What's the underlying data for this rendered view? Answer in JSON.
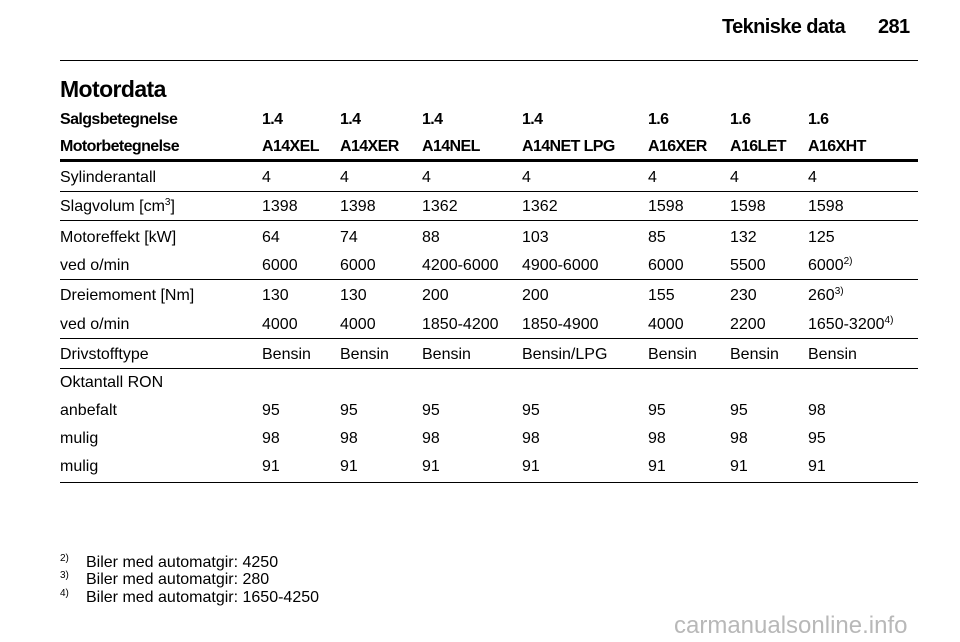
{
  "header": {
    "title": "Tekniske data",
    "page": "281"
  },
  "section": "Motordata",
  "table": {
    "head": [
      [
        "Salgsbetegnelse",
        "1.4",
        "1.4",
        "1.4",
        "1.4",
        "1.6",
        "1.6",
        "1.6"
      ],
      [
        "Motorbetegnelse",
        "A14XEL",
        "A14XER",
        "A14NEL",
        "A14NET LPG",
        "A16XER",
        "A16LET",
        "A16XHT"
      ]
    ],
    "rows": [
      [
        "Sylinderantall",
        "4",
        "4",
        "4",
        "4",
        "4",
        "4",
        "4"
      ],
      [
        {
          "text": "Slagvolum [cm",
          "sup": "3",
          "after": "]"
        },
        "1398",
        "1398",
        "1362",
        "1362",
        "1598",
        "1598",
        "1598"
      ],
      [
        "Motoreffekt [kW]",
        "64",
        "74",
        "88",
        "103",
        "85",
        "132",
        "125"
      ],
      [
        "ved o/min",
        "6000",
        "6000",
        "4200-6000",
        "4900-6000",
        "6000",
        "5500",
        {
          "text": "6000",
          "sup": "2)"
        }
      ],
      [
        "Dreiemoment [Nm]",
        "130",
        "130",
        "200",
        "200",
        "155",
        "230",
        {
          "text": "260",
          "sup": "3)"
        }
      ],
      [
        "ved o/min",
        "4000",
        "4000",
        "1850-4200",
        "1850-4900",
        "4000",
        "2200",
        {
          "text": "1650-3200",
          "sup": "4)"
        }
      ],
      [
        "Drivstofftype",
        "Bensin",
        "Bensin",
        "Bensin",
        "Bensin/LPG",
        "Bensin",
        "Bensin",
        "Bensin"
      ],
      [
        "Oktantall RON"
      ],
      [
        "anbefalt",
        "95",
        "95",
        "95",
        "95",
        "95",
        "95",
        "98"
      ],
      [
        "mulig",
        "98",
        "98",
        "98",
        "98",
        "98",
        "98",
        "95"
      ],
      [
        "mulig",
        "91",
        "91",
        "91",
        "91",
        "91",
        "91",
        "91"
      ]
    ]
  },
  "footnotes": [
    {
      "mark": "2)",
      "text": "Biler med automatgir: 4250"
    },
    {
      "mark": "3)",
      "text": "Biler med automatgir: 280"
    },
    {
      "mark": "4)",
      "text": "Biler med automatgir: 1650-4250"
    }
  ],
  "watermark": "carmanualsonline.info"
}
